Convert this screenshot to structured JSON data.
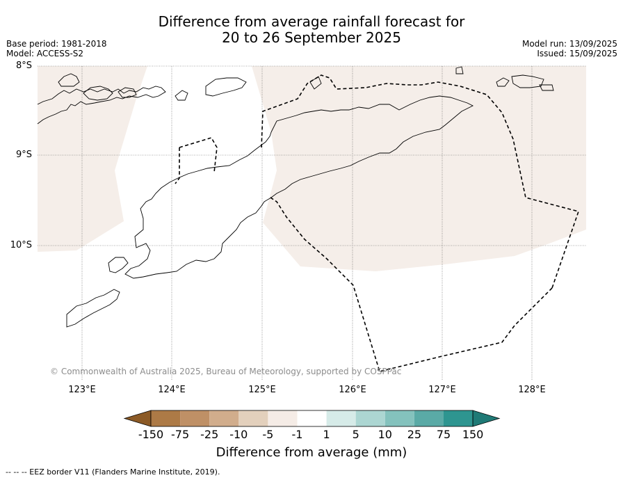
{
  "title_line1": "Difference from average rainfall forecast for",
  "title_line2": "20 to 26 September 2025",
  "meta_left": {
    "base_period": "Base period: 1981-2018",
    "model": "Model: ACCESS-S2"
  },
  "meta_right": {
    "model_run": "Model run: 13/09/2025",
    "issued": "Issued: 15/09/2025"
  },
  "lat_labels": [
    "8°S",
    "9°S",
    "10°S"
  ],
  "lon_labels": [
    "123°E",
    "124°E",
    "125°E",
    "126°E",
    "127°E",
    "128°E"
  ],
  "copyright": "© Commonwealth of Australia 2025, Bureau of Meteorology, supported by COSPPac",
  "legend": {
    "title": "Difference from average (mm)",
    "ticks": [
      "-150",
      "-75",
      "-25",
      "-10",
      "-5",
      "-1",
      "1",
      "5",
      "10",
      "25",
      "75",
      "150"
    ],
    "colors": [
      "#8c5a26",
      "#ad7a46",
      "#bf9066",
      "#d1ad8c",
      "#e3d0bc",
      "#f5ece6",
      "#ffffff",
      "#d6ebe8",
      "#acd6d2",
      "#84c2bd",
      "#5aaaa6",
      "#2e9590",
      "#1f7a76"
    ]
  },
  "footnote": "--  --  -- EEZ border V11 (Flanders Marine Institute, 2019).",
  "colors": {
    "dry_shading": "#f5eee9",
    "grid": "#555555",
    "eez": "#000000"
  }
}
